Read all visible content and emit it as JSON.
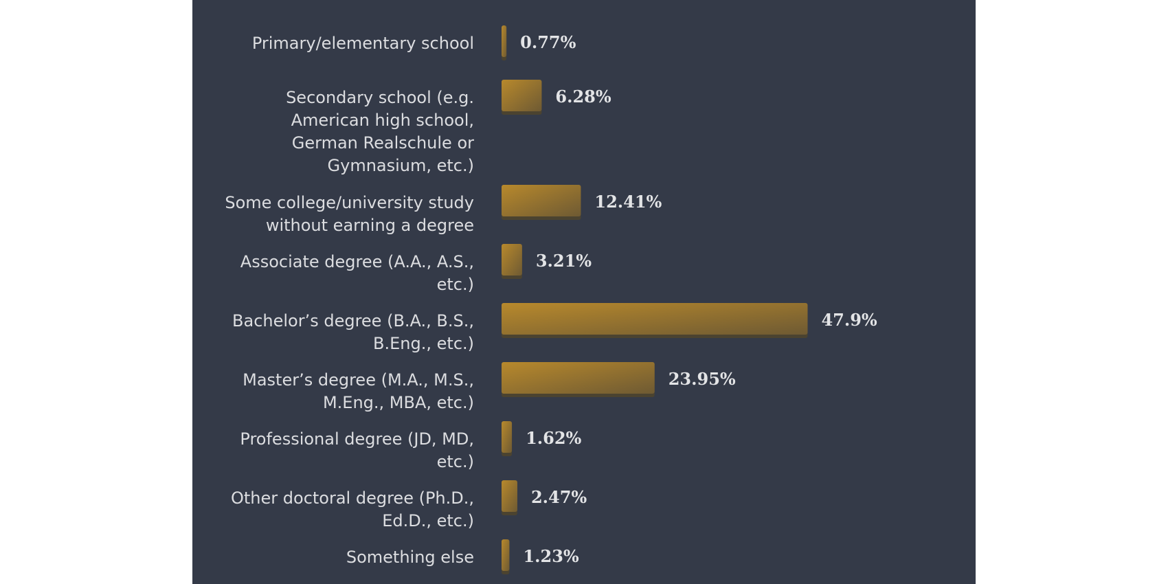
{
  "chart_data": {
    "type": "bar",
    "orientation": "horizontal",
    "categories": [
      [
        "Primary/elementary school"
      ],
      [
        "Secondary school (e.g.",
        "American high school,",
        "German Realschule or",
        "Gymnasium, etc.)"
      ],
      [
        "Some college/university study",
        "without earning a degree"
      ],
      [
        "Associate degree (A.A., A.S.,",
        "etc.)"
      ],
      [
        "Bachelor’s degree (B.A., B.S.,",
        "B.Eng., etc.)"
      ],
      [
        "Master’s degree (M.A., M.S.,",
        "M.Eng., MBA, etc.)"
      ],
      [
        "Professional degree (JD, MD,",
        "etc.)"
      ],
      [
        "Other doctoral degree (Ph.D.,",
        "Ed.D., etc.)"
      ],
      [
        "Something else"
      ]
    ],
    "values": [
      0.77,
      6.28,
      12.41,
      3.21,
      47.9,
      23.95,
      1.62,
      2.47,
      1.23
    ],
    "value_labels": [
      "0.77%",
      "6.28%",
      "12.41%",
      "3.21%",
      "47.9%",
      "23.95%",
      "1.62%",
      "2.47%",
      "1.23%"
    ],
    "value_unit": "%",
    "xlim": [
      0,
      50
    ],
    "grid": false,
    "legend": "none",
    "colors": {
      "panel": "#343a48",
      "bar_light": "#b8892c",
      "bar_dark": "#6e5a33",
      "bar_shadow": "#4b4330",
      "label_text": "#dcdde0",
      "value_text": "#e3e4e6"
    }
  }
}
